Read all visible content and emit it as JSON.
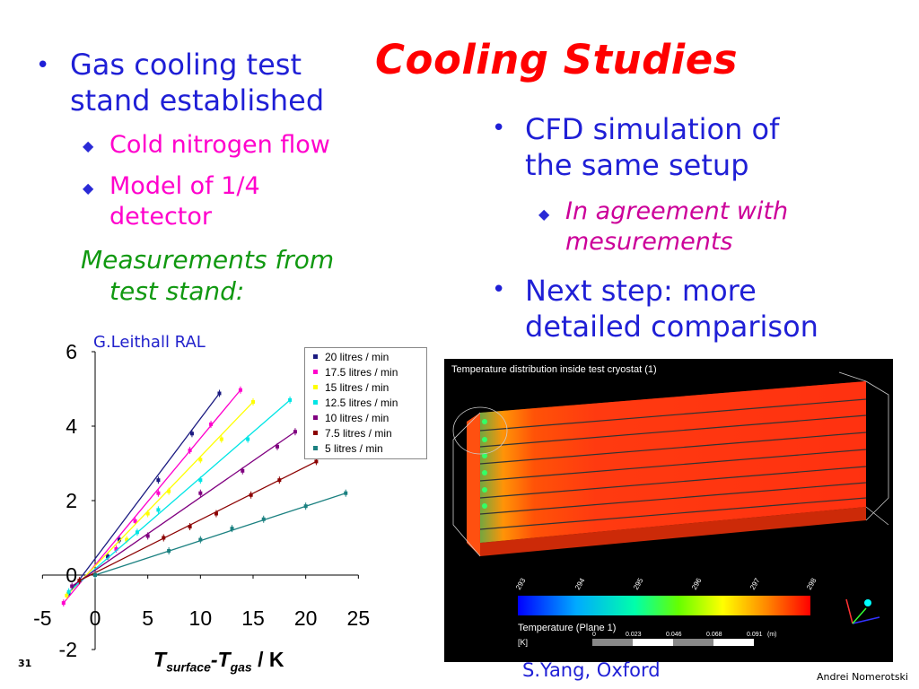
{
  "slide": {
    "title": "Cooling Studies",
    "number": "31",
    "author": "Andrei Nomerotski"
  },
  "left": {
    "bullet1_line1": "Gas cooling test",
    "bullet1_line2": "stand established",
    "sub1": "Cold nitrogen flow",
    "sub2_line1": "Model of 1/4",
    "sub2_line2": "detector",
    "meas_line1": "Measurements from",
    "meas_line2": "test stand:",
    "credit": "G.Leithall RAL"
  },
  "right": {
    "bullet1_line1": "CFD simulation of",
    "bullet1_line2": "the same setup",
    "sub1_line1": "In agreement with",
    "sub1_line2": "mesurements",
    "bullet2_line1": "Next step: more",
    "bullet2_line2": "detailed comparison",
    "credit": "S.Yang, Oxford"
  },
  "cfd": {
    "title": "Temperature distribution inside test cryostat (1)",
    "scale_labels": [
      "293",
      "294",
      "295",
      "296",
      "297",
      "298"
    ],
    "legend_label": "Temperature  (Plane  1)",
    "unit": "[K]",
    "bar_ticks": [
      "0",
      "0.023",
      "0.046",
      "0.068",
      "0.091"
    ],
    "bar_unit": "(m)"
  },
  "chart_data": {
    "type": "scatter",
    "xlabel_parts": [
      "T",
      "surface",
      "-T",
      "gas",
      " / K"
    ],
    "ylabel": "",
    "xlim": [
      -5,
      25
    ],
    "ylim": [
      -2,
      6
    ],
    "x_ticks": [
      -5,
      0,
      5,
      10,
      15,
      20,
      25
    ],
    "y_ticks": [
      -2,
      0,
      2,
      4,
      6
    ],
    "legend_position": "top-right",
    "series": [
      {
        "name": "20 litres / min",
        "color": "#1a1a80",
        "marker": "diamond",
        "points": [
          [
            -2.5,
            -0.5
          ],
          [
            0,
            0
          ],
          [
            1.2,
            0.5
          ],
          [
            2.3,
            0.95
          ],
          [
            6,
            2.55
          ],
          [
            9.2,
            3.8
          ],
          [
            11.8,
            4.88
          ]
        ]
      },
      {
        "name": "17.5 litres / min",
        "color": "#ff00cc",
        "marker": "square",
        "points": [
          [
            -3,
            -0.75
          ],
          [
            0,
            0
          ],
          [
            2,
            0.7
          ],
          [
            3.8,
            1.45
          ],
          [
            6,
            2.2
          ],
          [
            9,
            3.35
          ],
          [
            11,
            4.05
          ],
          [
            13.8,
            4.97
          ]
        ]
      },
      {
        "name": "15 litres / min",
        "color": "#ffff00",
        "marker": "triangle",
        "points": [
          [
            -2.7,
            -0.55
          ],
          [
            0,
            0
          ],
          [
            3,
            0.95
          ],
          [
            5,
            1.65
          ],
          [
            7,
            2.25
          ],
          [
            10,
            3.1
          ],
          [
            12,
            3.65
          ],
          [
            15,
            4.65
          ]
        ]
      },
      {
        "name": "12.5 litres / min",
        "color": "#00e5e5",
        "marker": "x",
        "points": [
          [
            -2.5,
            -0.45
          ],
          [
            0,
            0
          ],
          [
            4,
            1.15
          ],
          [
            6,
            1.75
          ],
          [
            10,
            2.55
          ],
          [
            14.5,
            3.65
          ],
          [
            18.5,
            4.7
          ]
        ]
      },
      {
        "name": "10 litres / min",
        "color": "#800080",
        "marker": "star",
        "points": [
          [
            -2.2,
            -0.3
          ],
          [
            0,
            0
          ],
          [
            5,
            1.05
          ],
          [
            10,
            2.2
          ],
          [
            14,
            2.8
          ],
          [
            17.3,
            3.45
          ],
          [
            19,
            3.85
          ]
        ]
      },
      {
        "name": "7.5 litres / min",
        "color": "#8b0000",
        "marker": "circle",
        "points": [
          [
            -1.5,
            -0.15
          ],
          [
            0,
            0
          ],
          [
            6.5,
            1.0
          ],
          [
            9,
            1.3
          ],
          [
            11.5,
            1.65
          ],
          [
            14.8,
            2.15
          ],
          [
            17.5,
            2.55
          ],
          [
            21,
            3.05
          ]
        ]
      },
      {
        "name": "5 litres / min",
        "color": "#1a8080",
        "marker": "plus",
        "points": [
          [
            0,
            0
          ],
          [
            7,
            0.65
          ],
          [
            10,
            0.95
          ],
          [
            13,
            1.25
          ],
          [
            16,
            1.5
          ],
          [
            20,
            1.85
          ],
          [
            23.8,
            2.2
          ]
        ]
      }
    ]
  }
}
